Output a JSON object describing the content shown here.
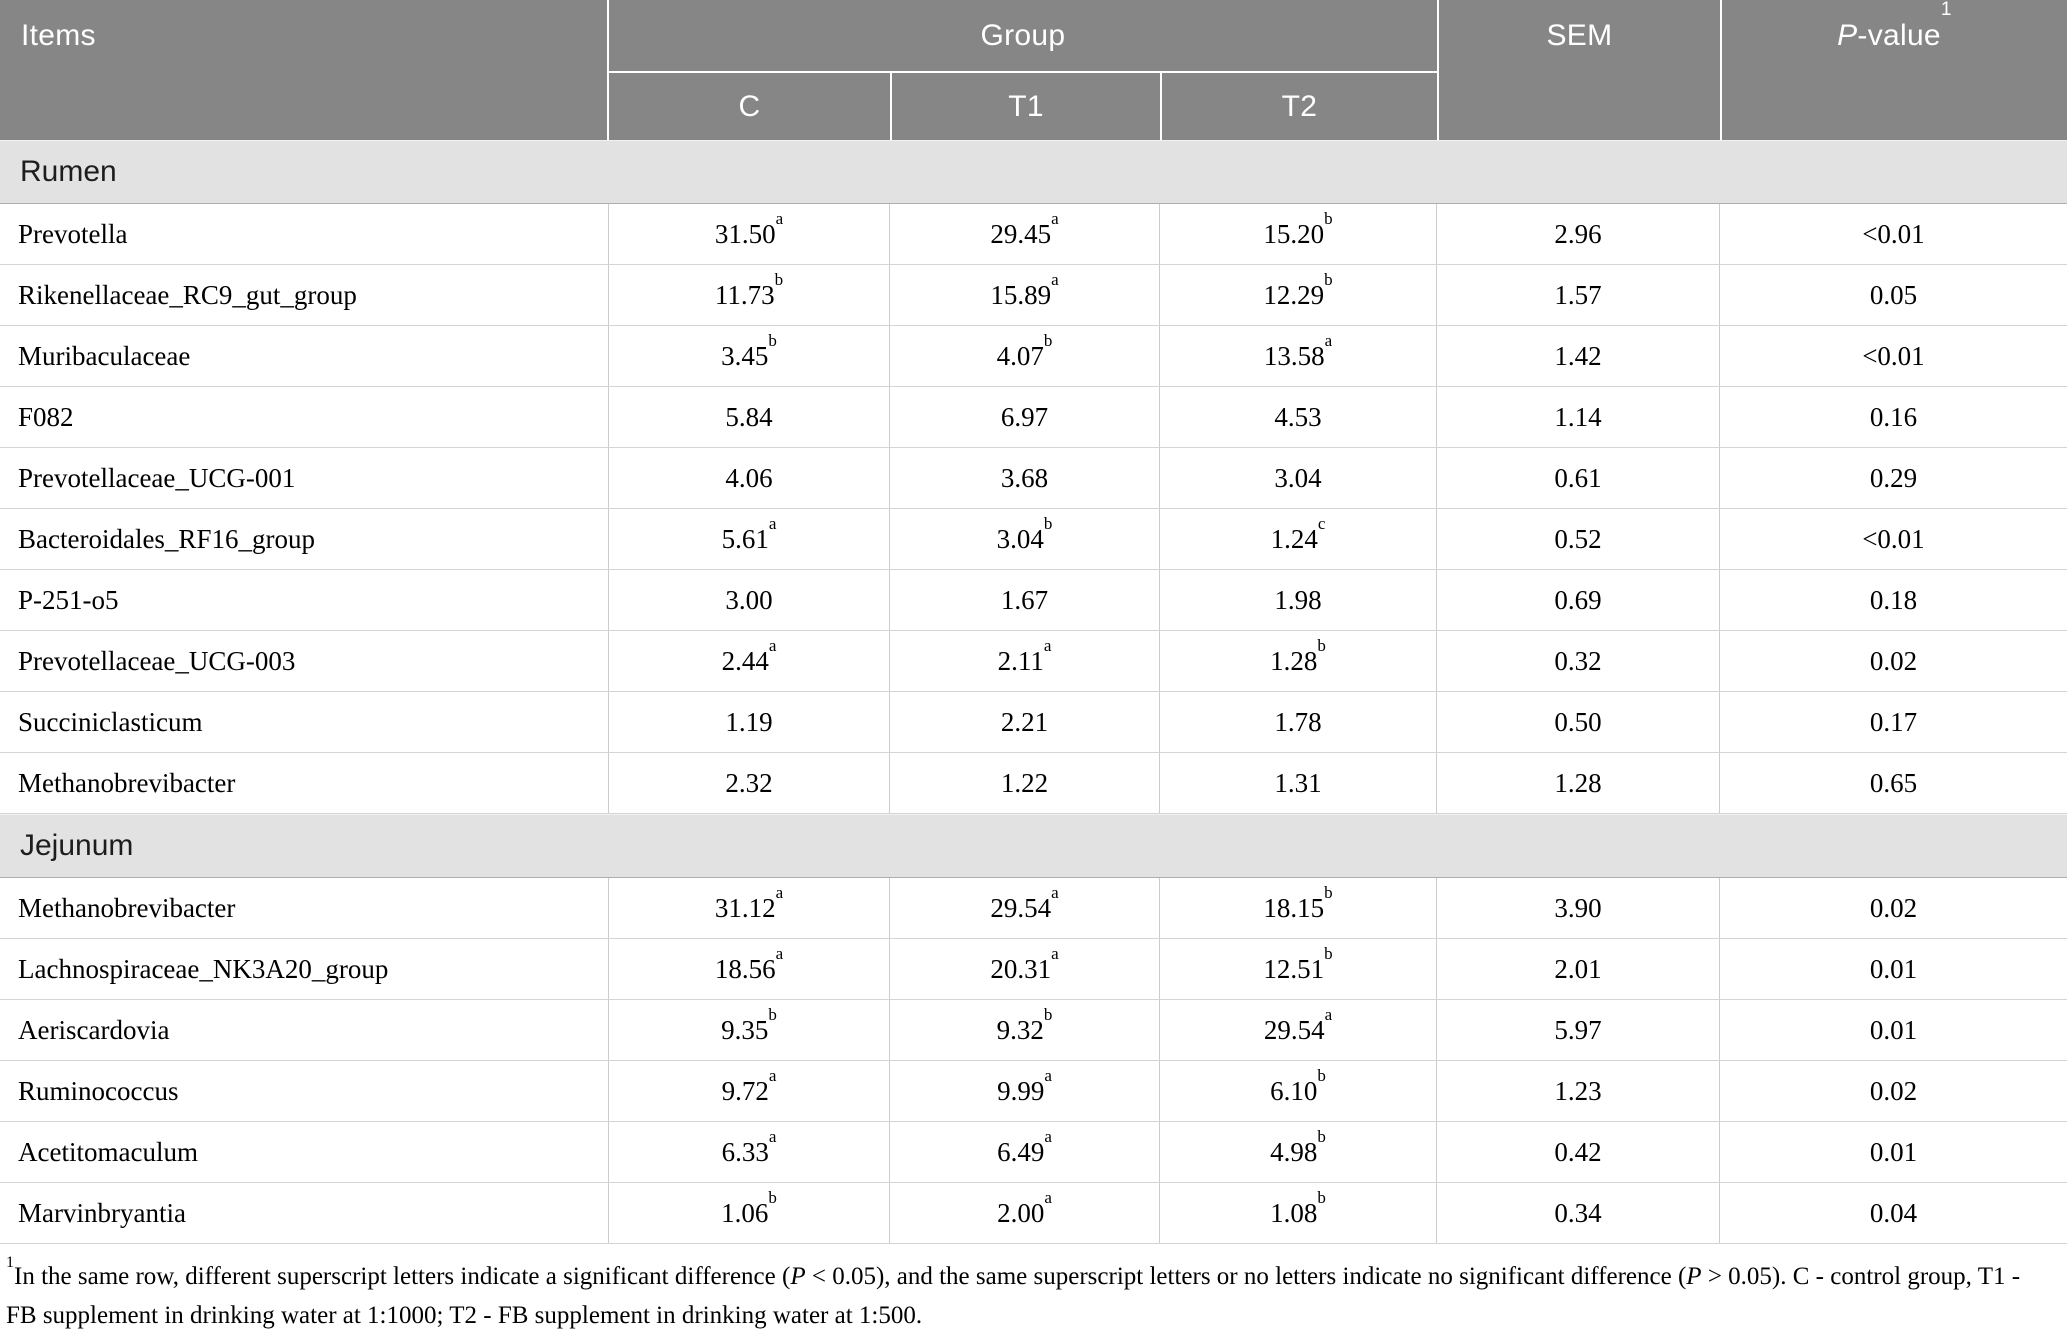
{
  "colors": {
    "header_bg": "#868686",
    "header_text": "#ffffff",
    "header_divider": "#ffffff",
    "section_bg": "#e2e2e2",
    "section_text": "#1d1d1d",
    "body_bg": "#ffffff",
    "body_text": "#000000",
    "row_border": "#d4d4d4",
    "col_border": "#cccccc",
    "section_border": "#aeaeae"
  },
  "header": {
    "items_label": "Items",
    "group_label": "Group",
    "subgroups": [
      "C",
      "T1",
      "T2"
    ],
    "sem_label": "SEM",
    "pvalue": {
      "italic": "P",
      "rest": "-value",
      "sup": "1"
    }
  },
  "sections": [
    {
      "name": "Rumen",
      "rows": [
        {
          "item": "Prevotella",
          "values": [
            {
              "v": "31.50",
              "sup": "a"
            },
            {
              "v": "29.45",
              "sup": "a"
            },
            {
              "v": "15.20",
              "sup": "b"
            }
          ],
          "sem": "2.96",
          "p": "<0.01"
        },
        {
          "item": "Rikenellaceae_RC9_gut_group",
          "values": [
            {
              "v": "11.73",
              "sup": "b"
            },
            {
              "v": "15.89",
              "sup": "a"
            },
            {
              "v": "12.29",
              "sup": "b"
            }
          ],
          "sem": "1.57",
          "p": "0.05"
        },
        {
          "item": "Muribaculaceae",
          "values": [
            {
              "v": "3.45",
              "sup": "b"
            },
            {
              "v": "4.07",
              "sup": "b"
            },
            {
              "v": "13.58",
              "sup": "a"
            }
          ],
          "sem": "1.42",
          "p": "<0.01"
        },
        {
          "item": "F082",
          "values": [
            {
              "v": "5.84",
              "sup": ""
            },
            {
              "v": "6.97",
              "sup": ""
            },
            {
              "v": "4.53",
              "sup": ""
            }
          ],
          "sem": "1.14",
          "p": "0.16"
        },
        {
          "item": "Prevotellaceae_UCG-001",
          "values": [
            {
              "v": "4.06",
              "sup": ""
            },
            {
              "v": "3.68",
              "sup": ""
            },
            {
              "v": "3.04",
              "sup": ""
            }
          ],
          "sem": "0.61",
          "p": "0.29"
        },
        {
          "item": "Bacteroidales_RF16_group",
          "values": [
            {
              "v": "5.61",
              "sup": "a"
            },
            {
              "v": "3.04",
              "sup": "b"
            },
            {
              "v": "1.24",
              "sup": "c"
            }
          ],
          "sem": "0.52",
          "p": "<0.01"
        },
        {
          "item": "P-251-o5",
          "values": [
            {
              "v": "3.00",
              "sup": ""
            },
            {
              "v": "1.67",
              "sup": ""
            },
            {
              "v": "1.98",
              "sup": ""
            }
          ],
          "sem": "0.69",
          "p": "0.18"
        },
        {
          "item": "Prevotellaceae_UCG-003",
          "values": [
            {
              "v": "2.44",
              "sup": "a"
            },
            {
              "v": "2.11",
              "sup": "a"
            },
            {
              "v": "1.28",
              "sup": "b"
            }
          ],
          "sem": "0.32",
          "p": "0.02"
        },
        {
          "item": "Succiniclasticum",
          "values": [
            {
              "v": "1.19",
              "sup": ""
            },
            {
              "v": "2.21",
              "sup": ""
            },
            {
              "v": "1.78",
              "sup": ""
            }
          ],
          "sem": "0.50",
          "p": "0.17"
        },
        {
          "item": "Methanobrevibacter",
          "values": [
            {
              "v": "2.32",
              "sup": ""
            },
            {
              "v": "1.22",
              "sup": ""
            },
            {
              "v": "1.31",
              "sup": ""
            }
          ],
          "sem": "1.28",
          "p": "0.65"
        }
      ]
    },
    {
      "name": "Jejunum",
      "rows": [
        {
          "item": "Methanobrevibacter",
          "values": [
            {
              "v": "31.12",
              "sup": "a"
            },
            {
              "v": "29.54",
              "sup": "a"
            },
            {
              "v": "18.15",
              "sup": "b"
            }
          ],
          "sem": "3.90",
          "p": "0.02"
        },
        {
          "item": "Lachnospiraceae_NK3A20_group",
          "values": [
            {
              "v": "18.56",
              "sup": "a"
            },
            {
              "v": "20.31",
              "sup": "a"
            },
            {
              "v": "12.51",
              "sup": "b"
            }
          ],
          "sem": "2.01",
          "p": "0.01"
        },
        {
          "item": "Aeriscardovia",
          "values": [
            {
              "v": "9.35",
              "sup": "b"
            },
            {
              "v": "9.32",
              "sup": "b"
            },
            {
              "v": "29.54",
              "sup": "a"
            }
          ],
          "sem": "5.97",
          "p": "0.01"
        },
        {
          "item": "Ruminococcus",
          "values": [
            {
              "v": "9.72",
              "sup": "a"
            },
            {
              "v": "9.99",
              "sup": "a"
            },
            {
              "v": "6.10",
              "sup": "b"
            }
          ],
          "sem": "1.23",
          "p": "0.02"
        },
        {
          "item": "Acetitomaculum",
          "values": [
            {
              "v": "6.33",
              "sup": "a"
            },
            {
              "v": "6.49",
              "sup": "a"
            },
            {
              "v": "4.98",
              "sup": "b"
            }
          ],
          "sem": "0.42",
          "p": "0.01"
        },
        {
          "item": "Marvinbryantia",
          "values": [
            {
              "v": "1.06",
              "sup": "b"
            },
            {
              "v": "2.00",
              "sup": "a"
            },
            {
              "v": "1.08",
              "sup": "b"
            }
          ],
          "sem": "0.34",
          "p": "0.04"
        }
      ]
    }
  ],
  "footnote": {
    "segments": [
      {
        "t": "1",
        "sup": true
      },
      {
        "t": "In the same row, different superscript letters indicate a significant difference ("
      },
      {
        "t": "P",
        "italic": true
      },
      {
        "t": " < 0.05), and the same superscript letters or no letters indicate no significant difference ("
      },
      {
        "t": "P",
        "italic": true
      },
      {
        "t": " > 0.05). C - control group, T1 - FB supplement in drinking water at 1:1000; T2 - FB supplement in drinking water at 1:500."
      }
    ]
  }
}
